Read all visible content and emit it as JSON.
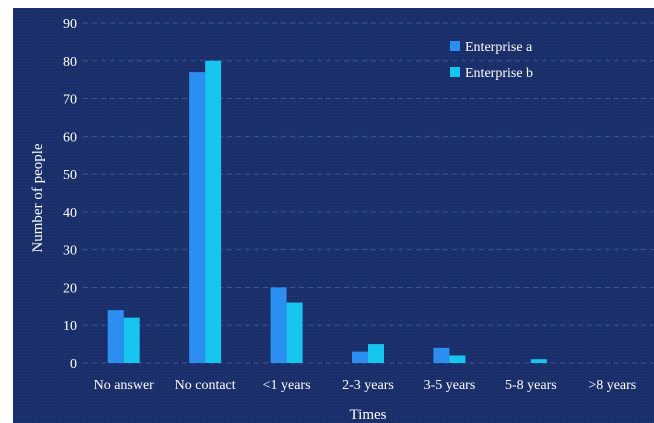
{
  "chart_data": {
    "type": "bar",
    "title": "",
    "xlabel": "Times",
    "ylabel": "Number of people",
    "ylim": [
      0,
      90
    ],
    "yticks": [
      "0",
      "10",
      "20",
      "30",
      "40",
      "50",
      "60",
      "70",
      "80",
      "90"
    ],
    "categories": [
      "No answer",
      "No contact",
      "<1 years",
      "2-3 years",
      "3-5 years",
      "5-8 years",
      ">8 years"
    ],
    "series": [
      {
        "name": "Enterprise a",
        "color": "#2b8ff2",
        "values": [
          14,
          77,
          20,
          3,
          4,
          0,
          0
        ]
      },
      {
        "name": "Enterprise b",
        "color": "#17c6ee",
        "values": [
          12,
          80,
          16,
          5,
          2,
          1,
          0
        ]
      }
    ],
    "grid": true,
    "legend_position": "top-right",
    "colors": {
      "background": "#1a2f6a",
      "grid": "#3c5590",
      "text": "#ffffff"
    }
  }
}
